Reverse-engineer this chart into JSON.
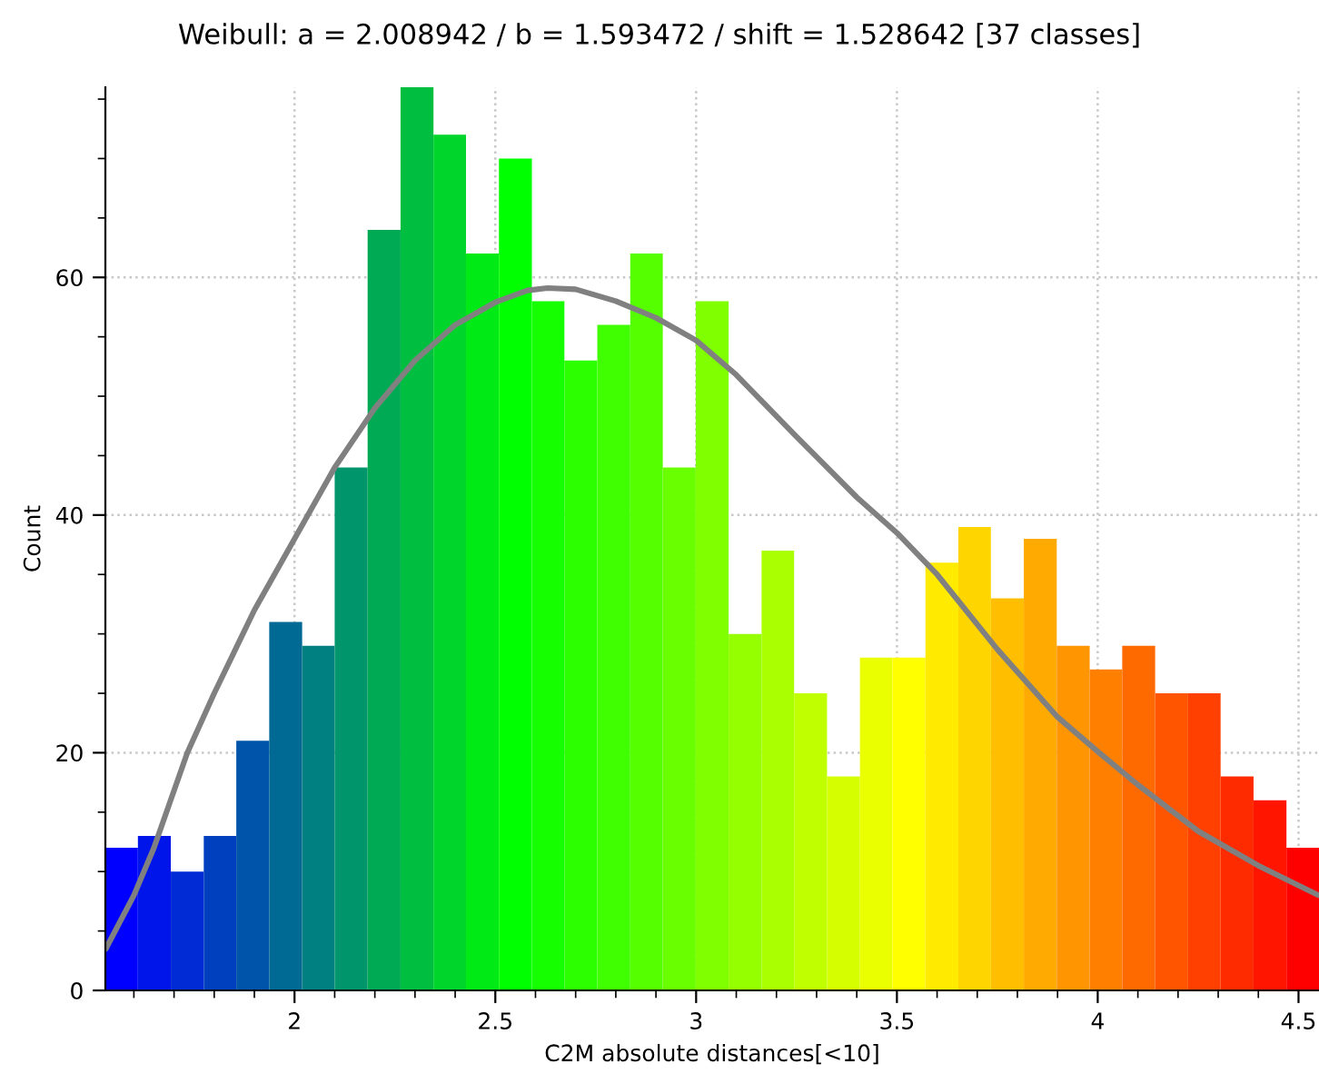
{
  "chart_data": {
    "type": "histogram",
    "title": "Weibull: a = 2.008942 / b = 1.593472 / shift = 1.528642 [37 classes]",
    "xlabel": "C2M absolute distances[<10]",
    "ylabel": "Count",
    "bins": [
      1.529,
      1.61,
      1.692,
      1.774,
      1.855,
      1.937,
      2.019,
      2.1,
      2.182,
      2.264,
      2.346,
      2.427,
      2.509,
      2.591,
      2.672,
      2.754,
      2.836,
      2.917,
      2.999,
      3.081,
      3.163,
      3.244,
      3.326,
      3.408,
      3.489,
      3.571,
      3.653,
      3.734,
      3.816,
      3.898,
      3.98,
      4.061,
      4.143,
      4.225,
      4.306,
      4.388,
      4.47,
      4.551
    ],
    "values": [
      12,
      13,
      10,
      13,
      21,
      31,
      29,
      44,
      64,
      76,
      72,
      62,
      70,
      58,
      53,
      56,
      62,
      44,
      58,
      30,
      37,
      25,
      18,
      28,
      28,
      36,
      39,
      33,
      38,
      29,
      27,
      29,
      25,
      25,
      18,
      16,
      12
    ],
    "colors": [
      "#0000ff",
      "#0015ea",
      "#002bd5",
      "#0040bf",
      "#0055aa",
      "#006a95",
      "#008080",
      "#00956a",
      "#00aa55",
      "#00bf40",
      "#00d52b",
      "#00ea15",
      "#00ff00",
      "#15ff00",
      "#2bff00",
      "#40ff00",
      "#55ff00",
      "#6aff00",
      "#80ff00",
      "#95ff00",
      "#aaff00",
      "#bfff00",
      "#d5ff00",
      "#eaff00",
      "#ffff00",
      "#ffea00",
      "#ffd500",
      "#ffbf00",
      "#ffaa00",
      "#ff9500",
      "#ff8000",
      "#ff6a00",
      "#ff5500",
      "#ff4000",
      "#ff2b00",
      "#ff1500",
      "#ff0000"
    ],
    "series": [
      {
        "type": "line",
        "color": "#808080",
        "x": [
          1.53,
          1.6,
          1.65,
          1.733,
          1.8,
          1.9,
          2.0,
          2.1,
          2.2,
          2.3,
          2.4,
          2.5,
          2.58,
          2.63,
          2.7,
          2.8,
          2.9,
          3.0,
          3.1,
          3.25,
          3.4,
          3.5,
          3.6,
          3.75,
          3.9,
          4.0,
          4.1,
          4.25,
          4.4,
          4.55
        ],
        "values": [
          3.5,
          8,
          12,
          20,
          25,
          32,
          38,
          44,
          49,
          53,
          56,
          57.9,
          58.9,
          59.1,
          59,
          58,
          56.6,
          54.7,
          51.8,
          46.6,
          41.5,
          38.5,
          35,
          28.7,
          23,
          20.1,
          17.3,
          13.4,
          10.5,
          8
        ]
      }
    ],
    "xlim": [
      1.529,
      4.551
    ],
    "ylim": [
      0,
      76
    ],
    "xticks": [
      2,
      2.5,
      3,
      3.5,
      4,
      4.5,
      {
        "value": 1.6,
        "label": null
      },
      {
        "value": 1.7,
        "label": null
      },
      {
        "value": 1.8,
        "label": null
      },
      {
        "value": 1.9,
        "label": null
      },
      {
        "value": 2.1,
        "label": null
      },
      {
        "value": 2.2,
        "label": null
      },
      {
        "value": 2.3,
        "label": null
      },
      {
        "value": 2.4,
        "label": null
      },
      {
        "value": 2.6,
        "label": null
      },
      {
        "value": 2.7,
        "label": null
      },
      {
        "value": 2.8,
        "label": null
      },
      {
        "value": 2.9,
        "label": null
      },
      {
        "value": 3.1,
        "label": null
      },
      {
        "value": 3.2,
        "label": null
      },
      {
        "value": 3.3,
        "label": null
      },
      {
        "value": 3.4,
        "label": null
      },
      {
        "value": 3.6,
        "label": null
      },
      {
        "value": 3.7,
        "label": null
      },
      {
        "value": 3.8,
        "label": null
      },
      {
        "value": 3.9,
        "label": null
      },
      {
        "value": 4.1,
        "label": null
      },
      {
        "value": 4.2,
        "label": null
      },
      {
        "value": 4.3,
        "label": null
      },
      {
        "value": 4.4,
        "label": null
      }
    ],
    "yticks": [
      0,
      20,
      40,
      60,
      {
        "value": 5,
        "label": null
      },
      {
        "value": 10,
        "label": null
      },
      {
        "value": 15,
        "label": null
      },
      {
        "value": 25,
        "label": null
      },
      {
        "value": 30,
        "label": null
      },
      {
        "value": 35,
        "label": null
      },
      {
        "value": 45,
        "label": null
      },
      {
        "value": 50,
        "label": null
      },
      {
        "value": 55,
        "label": null
      },
      {
        "value": 65,
        "label": null
      },
      {
        "value": 70,
        "label": null
      },
      {
        "value": 75,
        "label": null
      }
    ],
    "grid": true,
    "line_style": "solid"
  }
}
